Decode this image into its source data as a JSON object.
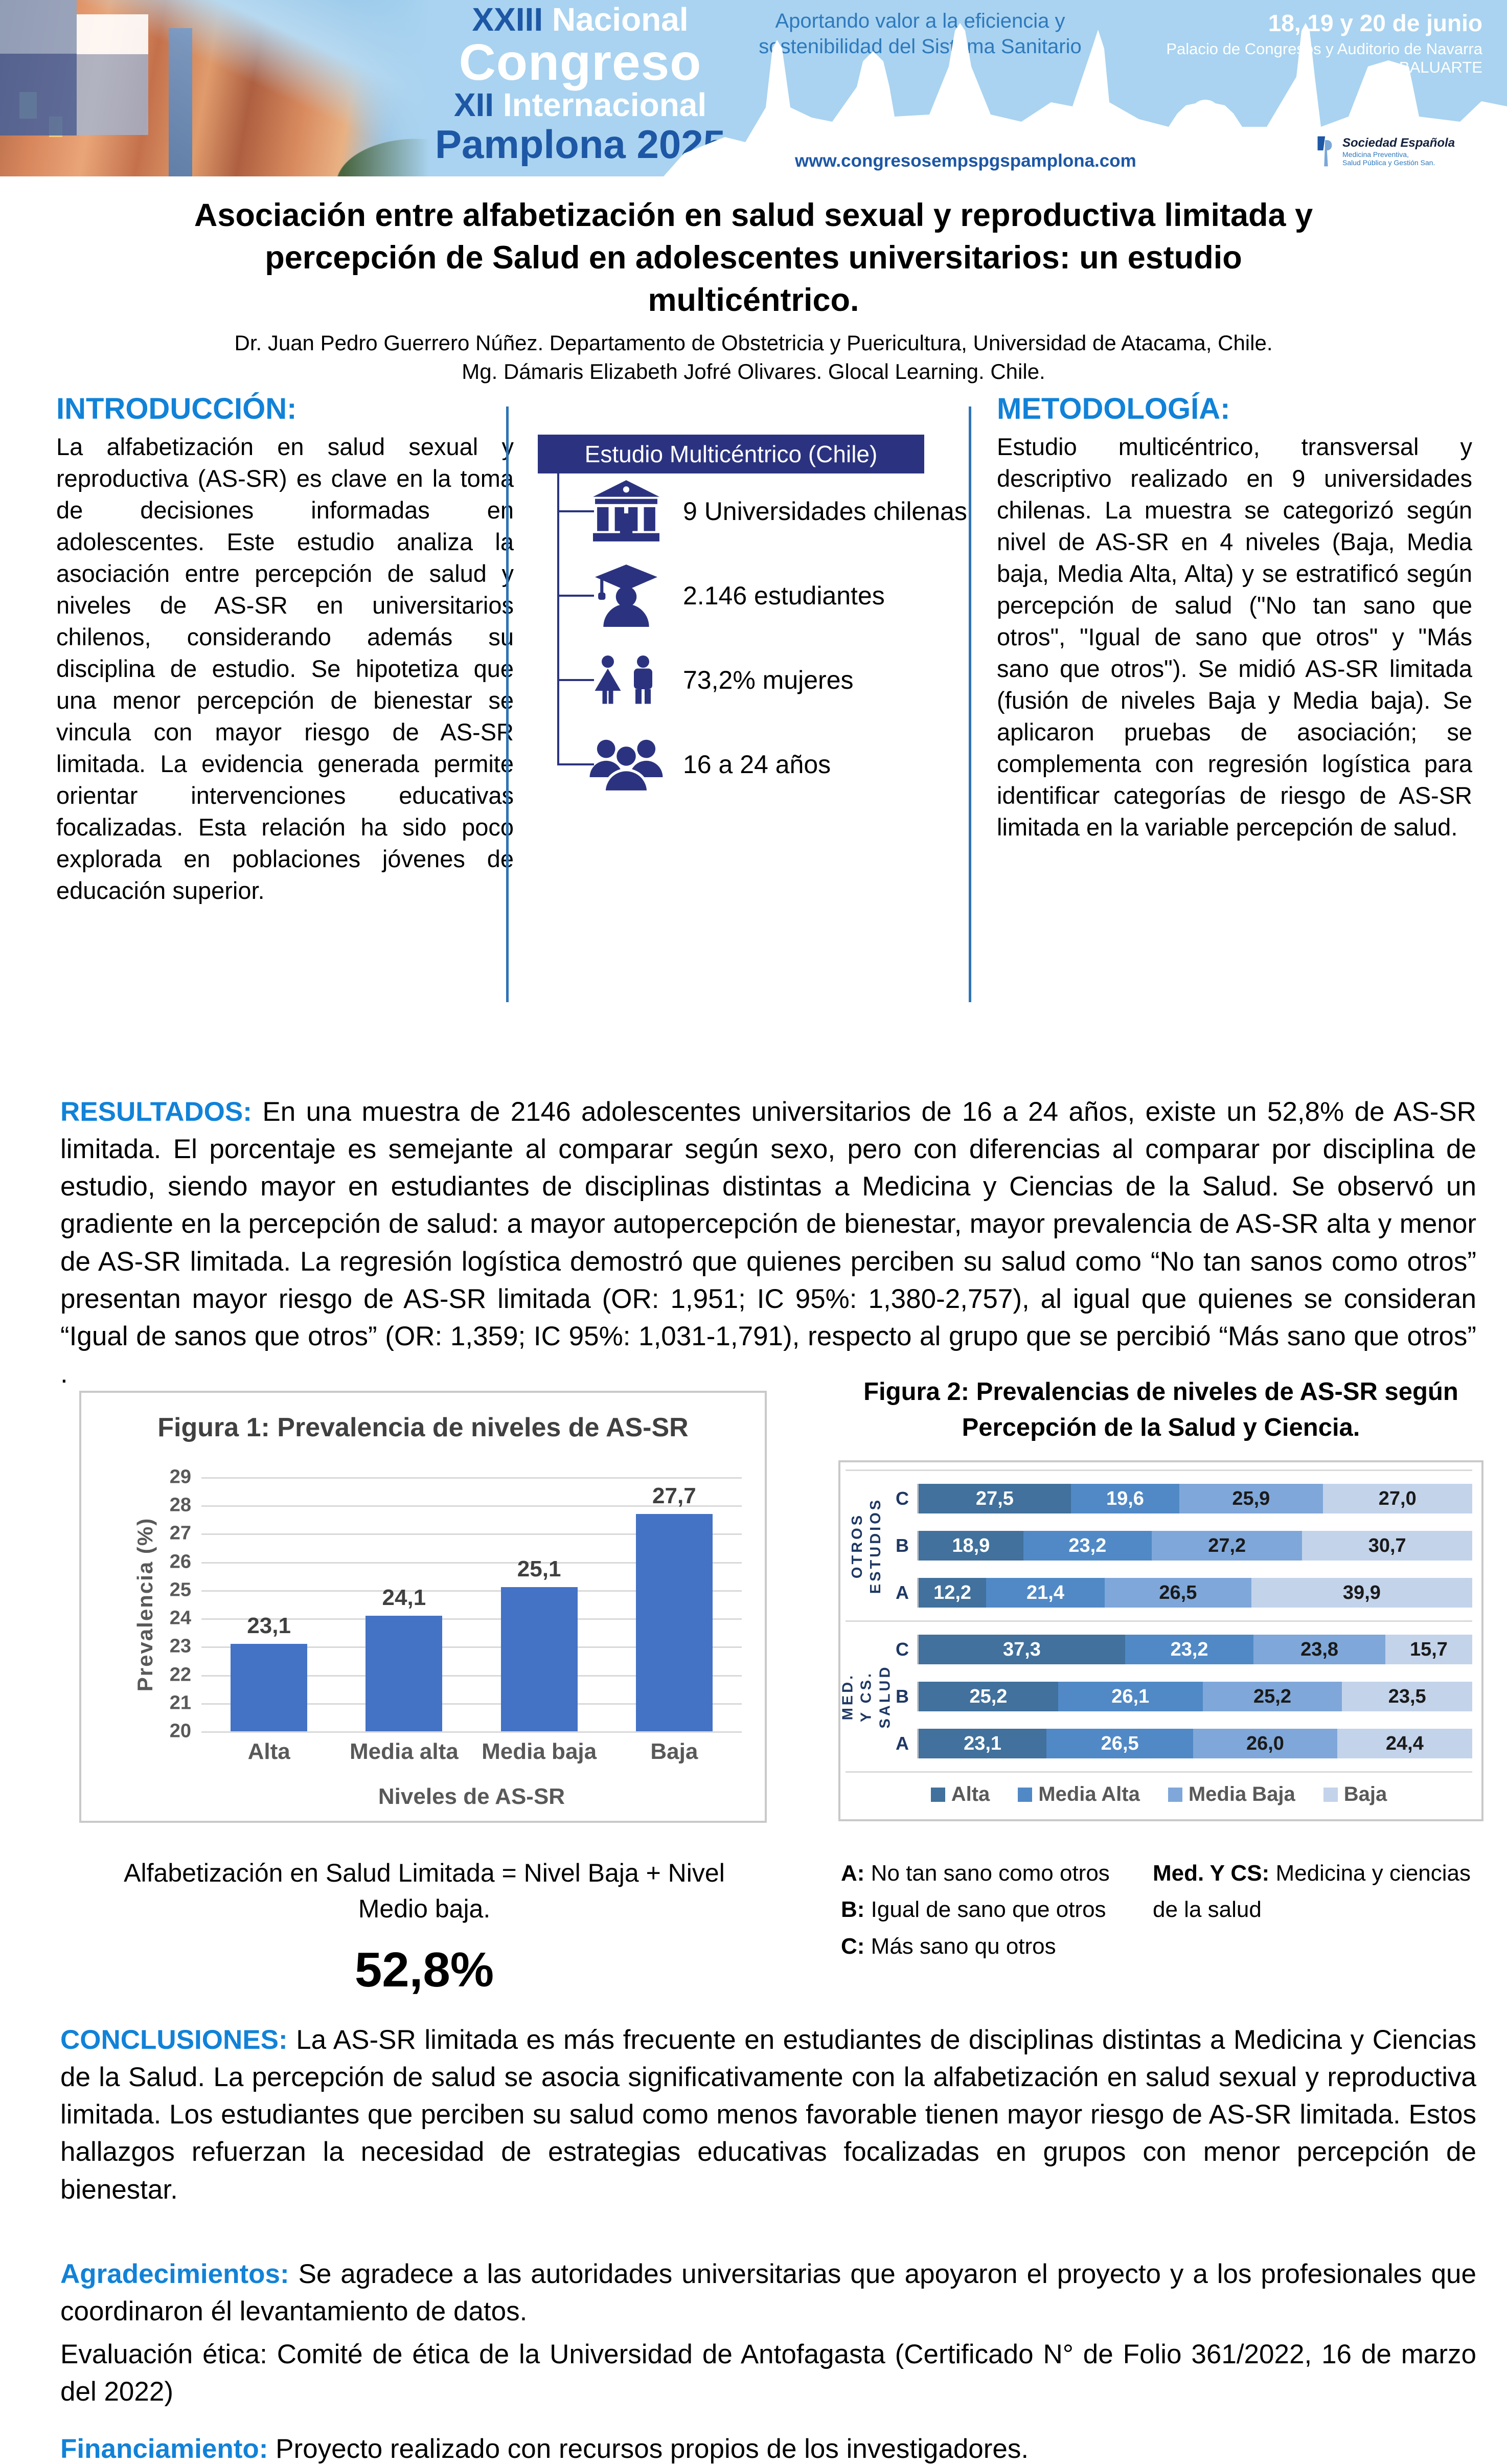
{
  "banner": {
    "congress": {
      "num1": "XXIII",
      "word1": "Nacional",
      "line2": "Congreso",
      "num3": "XII",
      "word3": "Internacional",
      "city": "Pamplona",
      "year": "2025"
    },
    "tagline_line1": "Aportando valor a la eficiencia y",
    "tagline_line2": "sostenibilidad del Sistema Sanitario",
    "dates_line1": "18, 19 y 20 de junio",
    "dates_line2": "Palacio de Congresos y Auditorio de Navarra BALUARTE",
    "website": "www.congresosempspgspamplona.com",
    "society": {
      "name": "Sociedad Española",
      "line2": "Medicina Preventiva,",
      "line3": "Salud Pública y Gestión San."
    }
  },
  "title_block": {
    "title_line1": "Asociación entre alfabetización en salud sexual y reproductiva limitada y",
    "title_line2": "percepción de Salud en adolescentes universitarios: un estudio",
    "title_line3": "multicéntrico.",
    "author1": "Dr. Juan Pedro Guerrero Núñez. Departamento de Obstetricia y Puericultura, Universidad de Atacama, Chile.",
    "author2": "Mg. Dámaris Elizabeth Jofré Olivares. Glocal Learning. Chile."
  },
  "introduccion": {
    "heading": "INTRODUCCIÓN:",
    "body": "La alfabetización en salud sexual y reproductiva (AS-SR) es clave en la toma de decisiones informadas en adolescentes. Este estudio analiza la asociación entre percepción de salud y niveles de AS-SR en universitarios chilenos, considerando además su disciplina de estudio. Se hipotetiza que una menor percepción de bienestar se vincula con mayor riesgo de AS-SR limitada. La evidencia generada permite orientar intervenciones educativas focalizadas. Esta relación ha sido poco explorada en poblaciones jóvenes de educación superior."
  },
  "infographic": {
    "header": "Estudio Multicéntrico (Chile)",
    "items": [
      {
        "icon": "university-icon",
        "label": "9 Universidades chilenas"
      },
      {
        "icon": "graduate-icon",
        "label": "2.146 estudiantes"
      },
      {
        "icon": "male-female-icon",
        "label": "73,2% mujeres"
      },
      {
        "icon": "people-group-icon",
        "label": "16 a 24 años"
      }
    ]
  },
  "metodologia": {
    "heading": "METODOLOGÍA:",
    "body": "Estudio multicéntrico, transversal y descriptivo realizado en 9 universidades chilenas. La muestra se categorizó según nivel de AS-SR en 4 niveles (Baja, Media baja, Media Alta, Alta) y se estratificó según percepción de salud (\"No tan sano que otros\", \"Igual de sano que otros\" y \"Más sano que otros\"). Se midió AS-SR limitada (fusión de niveles Baja y Media baja). Se aplicaron pruebas de asociación; se complementa con regresión logística para identificar categorías de riesgo de AS-SR limitada  en la variable percepción de salud."
  },
  "resultados": {
    "label": "RESULTADOS:",
    "text": " En una muestra de 2146  adolescentes universitarios de 16 a 24 años, existe un 52,8% de AS-SR limitada. El porcentaje es semejante al comparar según sexo, pero con diferencias al comparar por disciplina de estudio, siendo mayor en estudiantes de disciplinas distintas a Medicina y Ciencias de la Salud. Se observó un gradiente en la percepción de salud: a mayor autopercepción de bienestar, mayor prevalencia de AS-SR alta y menor de AS-SR limitada. La regresión logística demostró que quienes perciben su salud como “No tan sanos como otros” presentan mayor riesgo de AS-SR limitada (OR: 1,951; IC 95%: 1,380-2,757), al igual que quienes se consideran “Igual de sanos que otros” (OR: 1,359; IC 95%: 1,031-1,791), respecto al grupo que se percibió “Más sano que otros” ."
  },
  "chart_data": [
    {
      "id": "figura1",
      "type": "bar",
      "title": "Figura 1: Prevalencia de niveles de AS-SR",
      "categories": [
        "Alta",
        "Media alta",
        "Media baja",
        "Baja"
      ],
      "values": [
        23.1,
        24.1,
        25.1,
        27.7
      ],
      "value_labels": [
        "23,1",
        "24,1",
        "25,1",
        "27,7"
      ],
      "xlabel": "Niveles de AS-SR",
      "ylabel": "Prevalencia (%)",
      "ylim": [
        20,
        29
      ],
      "yticks": [
        29,
        28,
        27,
        26,
        25,
        24,
        23,
        22,
        21,
        20
      ],
      "bar_color": "#4472c4",
      "grid": true,
      "legend_position": "none"
    },
    {
      "id": "figura2",
      "type": "stacked-bar-horizontal",
      "title_line1": "Figura 2: Prevalencias de niveles de AS-SR según",
      "title_line2": "Percepción de la Salud y Ciencia.",
      "series": [
        "Alta",
        "Media Alta",
        "Media Baja",
        "Baja"
      ],
      "series_colors": [
        "#41719c",
        "#5089c6",
        "#7fa7d9",
        "#c3d3ea"
      ],
      "xlim": [
        0,
        100
      ],
      "legend_position": "bottom",
      "groups": [
        {
          "label": "OTROS\nESTUDIOS",
          "rows": [
            {
              "label": "C",
              "values": [
                27.5,
                19.6,
                25.9,
                27.0
              ],
              "labels": [
                "27,5",
                "19,6",
                "25,9",
                "27,0"
              ]
            },
            {
              "label": "B",
              "values": [
                18.9,
                23.2,
                27.2,
                30.7
              ],
              "labels": [
                "18,9",
                "23,2",
                "27,2",
                "30,7"
              ]
            },
            {
              "label": "A",
              "values": [
                12.2,
                21.4,
                26.5,
                39.9
              ],
              "labels": [
                "12,2",
                "21,4",
                "26,5",
                "39,9"
              ]
            }
          ]
        },
        {
          "label": "MED. Y CS.\nSALUD",
          "rows": [
            {
              "label": "C",
              "values": [
                37.3,
                23.2,
                23.8,
                15.7
              ],
              "labels": [
                "37,3",
                "23,2",
                "23,8",
                "15,7"
              ]
            },
            {
              "label": "B",
              "values": [
                25.2,
                26.1,
                25.2,
                23.5
              ],
              "labels": [
                "25,2",
                "26,1",
                "25,2",
                "23,5"
              ]
            },
            {
              "label": "A",
              "values": [
                23.1,
                26.5,
                26.0,
                24.4
              ],
              "labels": [
                "23,1",
                "26,5",
                "26,0",
                "24,4"
              ]
            }
          ]
        }
      ]
    }
  ],
  "figure1_note": {
    "line1": "Alfabetización en Salud Limitada = Nivel Baja + Nivel",
    "line2": "Medio baja.",
    "value": "52,8%"
  },
  "figure2_notes": {
    "a_label": "A:",
    "a_text": " No tan sano como otros",
    "b_label": "B:",
    "b_text": " Igual de sano que otros",
    "c_label": "C:",
    "c_text": " Más sano qu otros",
    "med_label": "Med. Y CS:",
    "med_text_line1": " Medicina y ciencias",
    "med_text_line2": "de la salud"
  },
  "conclusiones": {
    "label": "CONCLUSIONES:",
    "text": " La AS-SR limitada es más frecuente en estudiantes de disciplinas distintas a Medicina y Ciencias de la Salud. La percepción de salud se asocia significativamente con la alfabetización en salud sexual y reproductiva limitada. Los estudiantes que perciben su salud como menos favorable tienen mayor riesgo de AS-SR limitada. Estos hallazgos refuerzan la necesidad de estrategias educativas focalizadas en grupos con menor percepción de bienestar."
  },
  "agradecimientos": {
    "label": "Agradecimientos:",
    "text": "  Se agradece a las autoridades universitarias que apoyaron el proyecto y a los profesionales que coordinaron él levantamiento de datos."
  },
  "etica": {
    "label": "Evaluación ética:",
    "text": "  Comité de ética de la Universidad de Antofagasta (Certificado N° de Folio 361/2022, 16 de marzo del 2022)"
  },
  "financiamiento": {
    "label": "Financiamiento:",
    "text": " Proyecto realizado con recursos propios de los investigadores."
  },
  "colors": {
    "section_heading_blue": "#1182d8",
    "divider_blue": "#2e75b6",
    "infographic_navy": "#2b3380",
    "banner_dark_blue": "#1d57a5",
    "banner_light_blue": "#a9d3f0",
    "figure_border_gray": "#c9c9c9"
  }
}
